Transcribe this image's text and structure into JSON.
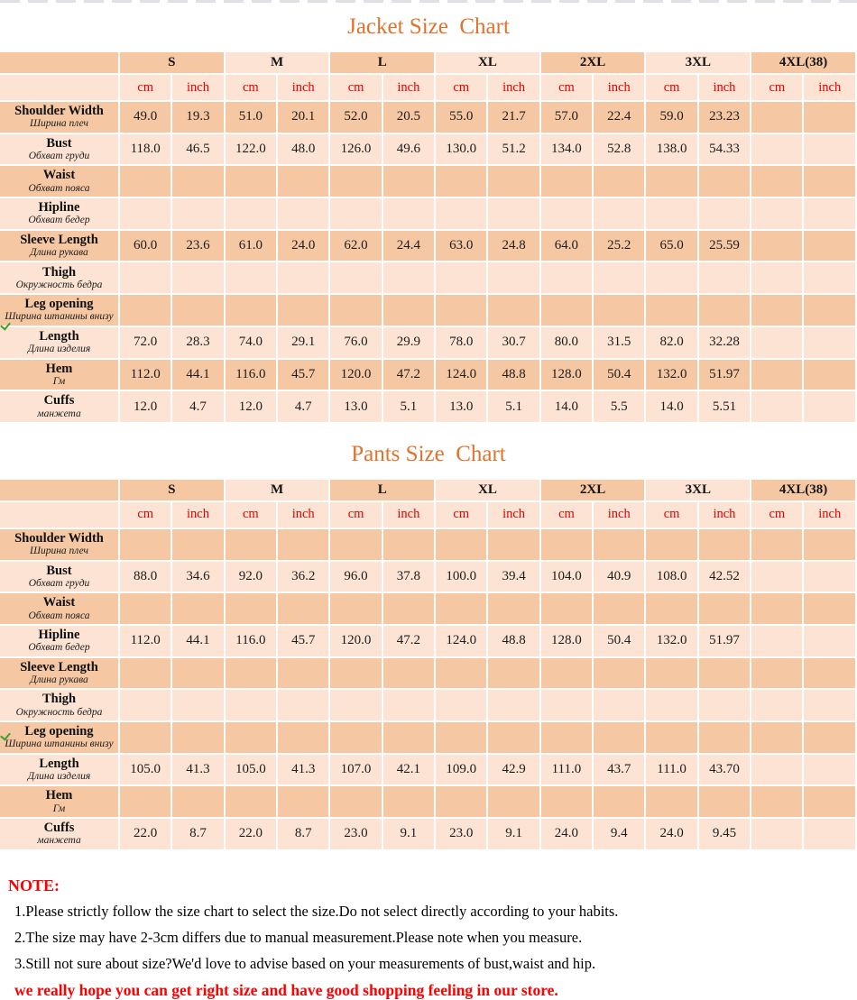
{
  "colors": {
    "title_orange": "#e0732c",
    "cell_dark": "#f5c7a3",
    "cell_light": "#fce3d3",
    "unit_red": "#e60000",
    "note_red": "#fe0000",
    "tick_green": "#3ba230"
  },
  "sizes": [
    "S",
    "M",
    "L",
    "XL",
    "2XL",
    "3XL",
    "4XL(38)"
  ],
  "units": [
    "cm",
    "inch"
  ],
  "measurements": [
    {
      "en": "Shoulder Width",
      "ru": "Ширина плеч"
    },
    {
      "en": "Bust",
      "ru": "Обхват груди"
    },
    {
      "en": "Waist",
      "ru": "Обхват пояса"
    },
    {
      "en": "Hipline",
      "ru": "Обхват бедер"
    },
    {
      "en": "Sleeve Length",
      "ru": "Длина рукава"
    },
    {
      "en": "Thigh",
      "ru": "Окружность бедра"
    },
    {
      "en": "Leg opening",
      "ru": "Ширина штанины внизу"
    },
    {
      "en": "Length",
      "ru": "Длина изделия"
    },
    {
      "en": "Hem",
      "ru": "Гм"
    },
    {
      "en": "Cuffs",
      "ru": "манжета"
    }
  ],
  "jacket": {
    "title": "Jacket Size  Chart",
    "values": [
      [
        "49.0",
        "19.3",
        "51.0",
        "20.1",
        "52.0",
        "20.5",
        "55.0",
        "21.7",
        "57.0",
        "22.4",
        "59.0",
        "23.23",
        "",
        ""
      ],
      [
        "118.0",
        "46.5",
        "122.0",
        "48.0",
        "126.0",
        "49.6",
        "130.0",
        "51.2",
        "134.0",
        "52.8",
        "138.0",
        "54.33",
        "",
        ""
      ],
      [
        "",
        "",
        "",
        "",
        "",
        "",
        "",
        "",
        "",
        "",
        "",
        "",
        "",
        ""
      ],
      [
        "",
        "",
        "",
        "",
        "",
        "",
        "",
        "",
        "",
        "",
        "",
        "",
        "",
        ""
      ],
      [
        "60.0",
        "23.6",
        "61.0",
        "24.0",
        "62.0",
        "24.4",
        "63.0",
        "24.8",
        "64.0",
        "25.2",
        "65.0",
        "25.59",
        "",
        ""
      ],
      [
        "",
        "",
        "",
        "",
        "",
        "",
        "",
        "",
        "",
        "",
        "",
        "",
        "",
        ""
      ],
      [
        "",
        "",
        "",
        "",
        "",
        "",
        "",
        "",
        "",
        "",
        "",
        "",
        "",
        ""
      ],
      [
        "72.0",
        "28.3",
        "74.0",
        "29.1",
        "76.0",
        "29.9",
        "78.0",
        "30.7",
        "80.0",
        "31.5",
        "82.0",
        "32.28",
        "",
        ""
      ],
      [
        "112.0",
        "44.1",
        "116.0",
        "45.7",
        "120.0",
        "47.2",
        "124.0",
        "48.8",
        "128.0",
        "50.4",
        "132.0",
        "51.97",
        "",
        ""
      ],
      [
        "12.0",
        "4.7",
        "12.0",
        "4.7",
        "13.0",
        "5.1",
        "13.0",
        "5.1",
        "14.0",
        "5.5",
        "14.0",
        "5.51",
        "",
        ""
      ]
    ]
  },
  "pants": {
    "title": "Pants Size  Chart",
    "values": [
      [
        "",
        "",
        "",
        "",
        "",
        "",
        "",
        "",
        "",
        "",
        "",
        "",
        "",
        ""
      ],
      [
        "88.0",
        "34.6",
        "92.0",
        "36.2",
        "96.0",
        "37.8",
        "100.0",
        "39.4",
        "104.0",
        "40.9",
        "108.0",
        "42.52",
        "",
        ""
      ],
      [
        "",
        "",
        "",
        "",
        "",
        "",
        "",
        "",
        "",
        "",
        "",
        "",
        "",
        ""
      ],
      [
        "112.0",
        "44.1",
        "116.0",
        "45.7",
        "120.0",
        "47.2",
        "124.0",
        "48.8",
        "128.0",
        "50.4",
        "132.0",
        "51.97",
        "",
        ""
      ],
      [
        "",
        "",
        "",
        "",
        "",
        "",
        "",
        "",
        "",
        "",
        "",
        "",
        "",
        ""
      ],
      [
        "",
        "",
        "",
        "",
        "",
        "",
        "",
        "",
        "",
        "",
        "",
        "",
        "",
        ""
      ],
      [
        "",
        "",
        "",
        "",
        "",
        "",
        "",
        "",
        "",
        "",
        "",
        "",
        "",
        ""
      ],
      [
        "105.0",
        "41.3",
        "105.0",
        "41.3",
        "107.0",
        "42.1",
        "109.0",
        "42.9",
        "111.0",
        "43.7",
        "111.0",
        "43.70",
        "",
        ""
      ],
      [
        "",
        "",
        "",
        "",
        "",
        "",
        "",
        "",
        "",
        "",
        "",
        "",
        "",
        ""
      ],
      [
        "22.0",
        "8.7",
        "22.0",
        "8.7",
        "23.0",
        "9.1",
        "23.0",
        "9.1",
        "24.0",
        "9.4",
        "24.0",
        "9.45",
        "",
        ""
      ]
    ]
  },
  "note": {
    "heading": "NOTE:",
    "lines": [
      "1.Please strictly follow the size chart to select the size.Do not select directly according to your habits.",
      "2.The size may have 2-3cm differs due to manual measurement.Please note when you measure.",
      "3.Still not sure about size?We'd love to advise based on your measurements of bust,waist and hip."
    ],
    "footer": "we really hope you can get right size and have good shopping feeling in our store."
  }
}
